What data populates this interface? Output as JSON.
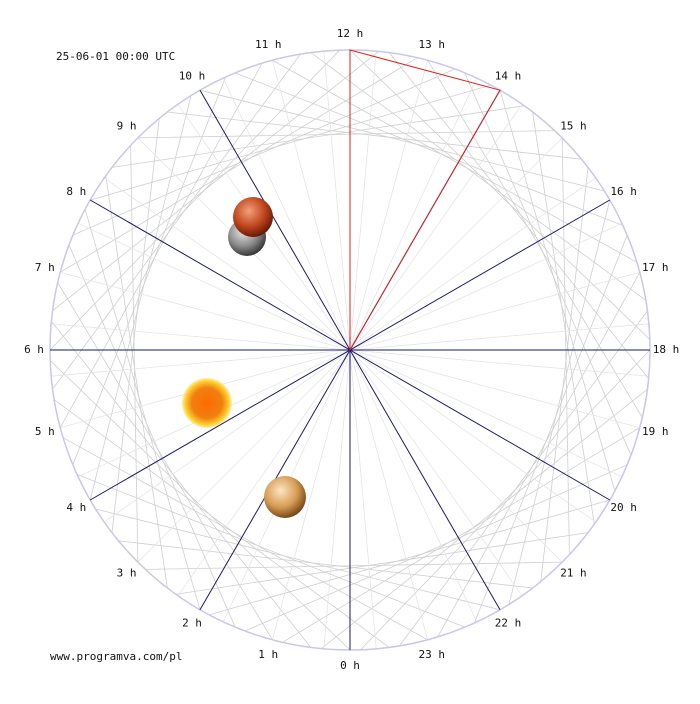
{
  "header": {
    "timestamp": "25-06-01 00:00 UTC"
  },
  "footer": {
    "credit": "www.programva.com/pl"
  },
  "dial": {
    "hour_labels": [
      "0 h",
      "1 h",
      "2 h",
      "3 h",
      "4 h",
      "5 h",
      "6 h",
      "7 h",
      "8 h",
      "9 h",
      "10 h",
      "11 h",
      "12 h",
      "13 h",
      "14 h",
      "15 h",
      "16 h",
      "17 h",
      "18 h",
      "19 h",
      "20 h",
      "21 h",
      "22 h",
      "23 h"
    ]
  }
}
